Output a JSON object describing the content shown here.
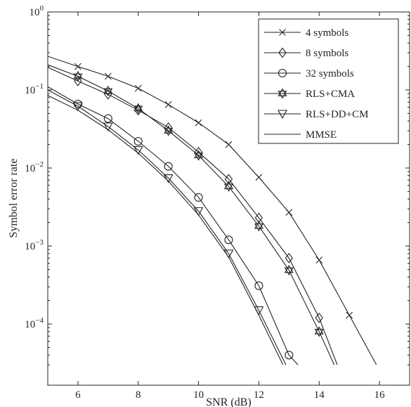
{
  "chart_data": {
    "type": "line",
    "xlabel": "SNR (dB)",
    "ylabel": "Symbol error rate",
    "x_scale": "linear",
    "y_scale": "log",
    "xlim": [
      5,
      17
    ],
    "ylim": [
      3e-05,
      1
    ],
    "x_ticks": [
      6,
      8,
      10,
      12,
      14,
      16
    ],
    "x_tick_labels": [
      "6",
      "8",
      "10",
      "12",
      "14",
      "16"
    ],
    "y_ticks": [
      0.0001,
      0.001,
      0.01,
      0.1,
      1
    ],
    "y_tick_labels": [
      {
        "base": "10",
        "exp": "−4"
      },
      {
        "base": "10",
        "exp": "−3"
      },
      {
        "base": "10",
        "exp": "−2"
      },
      {
        "base": "10",
        "exp": "−1"
      },
      {
        "base": "10",
        "exp": "0"
      }
    ],
    "grid": false,
    "legend_position": "top-right",
    "series": [
      {
        "name": "4 symbols",
        "marker": "x",
        "x": [
          5,
          6,
          7,
          8,
          9,
          10,
          11,
          12,
          13,
          14,
          15,
          15.9
        ],
        "y": [
          0.27,
          0.2,
          0.15,
          0.105,
          0.065,
          0.038,
          0.02,
          0.0076,
          0.0027,
          0.00066,
          0.00013,
          3e-05
        ]
      },
      {
        "name": "8 symbols",
        "marker": "diamond",
        "x": [
          5,
          6,
          7,
          8,
          9,
          10,
          11,
          12,
          13,
          14,
          14.6
        ],
        "y": [
          0.195,
          0.13,
          0.088,
          0.055,
          0.033,
          0.016,
          0.0072,
          0.0023,
          0.0007,
          0.00012,
          3e-05
        ]
      },
      {
        "name": "32 symbols",
        "marker": "circle",
        "x": [
          5,
          6,
          7,
          8,
          9,
          10,
          11,
          12,
          13,
          13.3
        ],
        "y": [
          0.11,
          0.066,
          0.043,
          0.022,
          0.0105,
          0.0042,
          0.0012,
          0.00031,
          4e-05,
          3e-05
        ]
      },
      {
        "name": "RLS+CMA",
        "marker": "hexagram",
        "x": [
          5,
          6,
          7,
          8,
          9,
          10,
          11,
          12,
          13,
          14,
          14.5
        ],
        "y": [
          0.21,
          0.15,
          0.097,
          0.058,
          0.03,
          0.0145,
          0.0058,
          0.0018,
          0.00049,
          8e-05,
          3e-05
        ]
      },
      {
        "name": "RLS+DD+CM",
        "marker": "triangle-down",
        "x": [
          5,
          6,
          7,
          8,
          9,
          10,
          11,
          12,
          12.9
        ],
        "y": [
          0.1,
          0.062,
          0.034,
          0.017,
          0.0074,
          0.0028,
          0.0008,
          0.00015,
          3e-05
        ]
      },
      {
        "name": "MMSE",
        "marker": "none",
        "x": [
          5,
          6,
          7,
          8,
          9,
          10,
          11,
          12,
          12.8
        ],
        "y": [
          0.085,
          0.055,
          0.031,
          0.0155,
          0.0068,
          0.0025,
          0.00072,
          0.00013,
          3e-05
        ]
      }
    ]
  }
}
